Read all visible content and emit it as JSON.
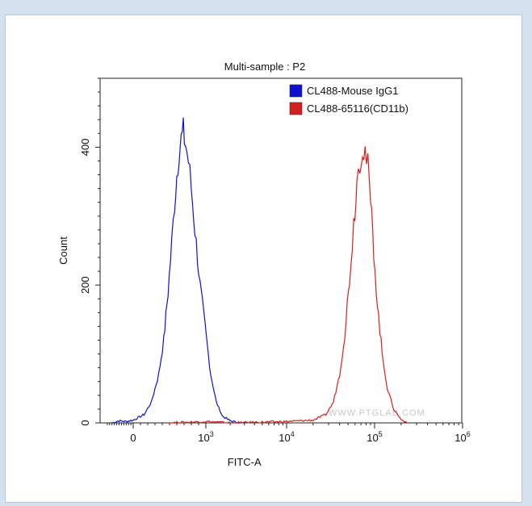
{
  "chart_data": {
    "type": "histogram",
    "title": "Multi-sample : P2",
    "xlabel": "FITC-A",
    "ylabel": "Count",
    "x_scale": "biexponential",
    "ylim": [
      0,
      500
    ],
    "xtick_labels": [
      {
        "value": 0,
        "label": "0",
        "sup": ""
      },
      {
        "value": 1000,
        "label": "10",
        "sup": "3"
      },
      {
        "value": 10000,
        "label": "10",
        "sup": "4"
      },
      {
        "value": 100000,
        "label": "10",
        "sup": "5"
      },
      {
        "value": 1000000,
        "label": "10",
        "sup": "6"
      }
    ],
    "ytick_labels": [
      {
        "value": 0,
        "label": "0"
      },
      {
        "value": 200,
        "label": "200"
      },
      {
        "value": 400,
        "label": "400"
      }
    ],
    "legend_position": "top-right",
    "watermark": "WWW.PTGLAB.COM",
    "series": [
      {
        "name": "CL488-Mouse IgG1",
        "color": "#1010d0",
        "points": [
          [
            -900,
            0
          ],
          [
            -600,
            3
          ],
          [
            -300,
            2
          ],
          [
            0,
            4
          ],
          [
            150,
            12
          ],
          [
            250,
            30
          ],
          [
            350,
            70
          ],
          [
            420,
            120
          ],
          [
            480,
            190
          ],
          [
            530,
            260
          ],
          [
            570,
            320
          ],
          [
            600,
            360
          ],
          [
            630,
            395
          ],
          [
            660,
            410
          ],
          [
            690,
            420
          ],
          [
            720,
            405
          ],
          [
            760,
            380
          ],
          [
            800,
            340
          ],
          [
            850,
            280
          ],
          [
            920,
            200
          ],
          [
            1000,
            130
          ],
          [
            1150,
            70
          ],
          [
            1350,
            30
          ],
          [
            1600,
            10
          ],
          [
            2000,
            3
          ],
          [
            2600,
            0
          ]
        ]
      },
      {
        "name": "CL488-65116(CD11b)",
        "color": "#d42020",
        "points": [
          [
            500,
            0
          ],
          [
            1000,
            2
          ],
          [
            2000,
            0
          ],
          [
            5000,
            1
          ],
          [
            10000,
            2
          ],
          [
            20000,
            4
          ],
          [
            28000,
            12
          ],
          [
            34000,
            30
          ],
          [
            40000,
            70
          ],
          [
            46000,
            130
          ],
          [
            52000,
            210
          ],
          [
            58000,
            290
          ],
          [
            63000,
            350
          ],
          [
            68000,
            385
          ],
          [
            73000,
            402
          ],
          [
            78000,
            395
          ],
          [
            84000,
            370
          ],
          [
            90000,
            320
          ],
          [
            98000,
            250
          ],
          [
            108000,
            170
          ],
          [
            122000,
            100
          ],
          [
            140000,
            50
          ],
          [
            165000,
            20
          ],
          [
            200000,
            5
          ],
          [
            240000,
            0
          ]
        ]
      }
    ]
  }
}
